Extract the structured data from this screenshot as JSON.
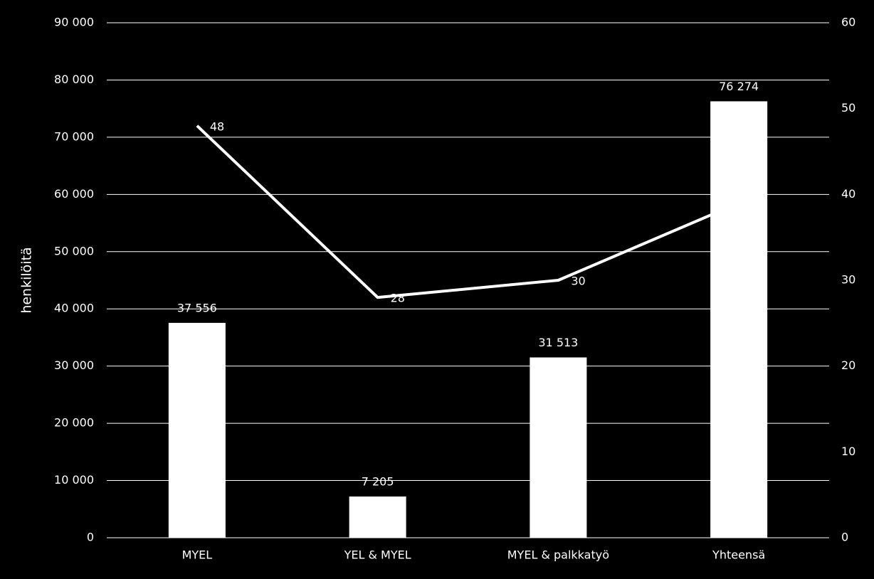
{
  "chart_data": {
    "type": "bar",
    "y_label": "henkilöitä",
    "categories": [
      "MYEL",
      "YEL & MYEL",
      "MYEL & palkkatyö",
      "Yhteensä"
    ],
    "series": [
      {
        "type": "bar",
        "color": "#ffffff",
        "values": [
          37556,
          7205,
          31513,
          76274
        ],
        "value_labels": [
          "37 556",
          "7 205",
          "31 513",
          "76 274"
        ]
      },
      {
        "type": "line",
        "axis": "y2",
        "color": "#ffffff",
        "values": [
          48,
          28,
          30,
          39
        ]
      }
    ],
    "ylim": [
      0,
      90000
    ],
    "yticks": [
      0,
      {
        "value": 10000,
        "label": "10 000"
      },
      {
        "value": 20000,
        "label": "20 000"
      },
      {
        "value": 30000,
        "label": "30 000"
      },
      {
        "value": 40000,
        "label": "40 000"
      },
      {
        "value": 50000,
        "label": "50 000"
      },
      {
        "value": 60000,
        "label": "60 000"
      },
      {
        "value": 70000,
        "label": "70 000"
      },
      {
        "value": 80000,
        "label": "80 000"
      },
      {
        "value": 90000,
        "label": "90 000"
      }
    ],
    "y2lim": [
      0,
      60
    ],
    "y2ticks": [
      0,
      10,
      20,
      30,
      40,
      50,
      60
    ],
    "grid": true
  }
}
